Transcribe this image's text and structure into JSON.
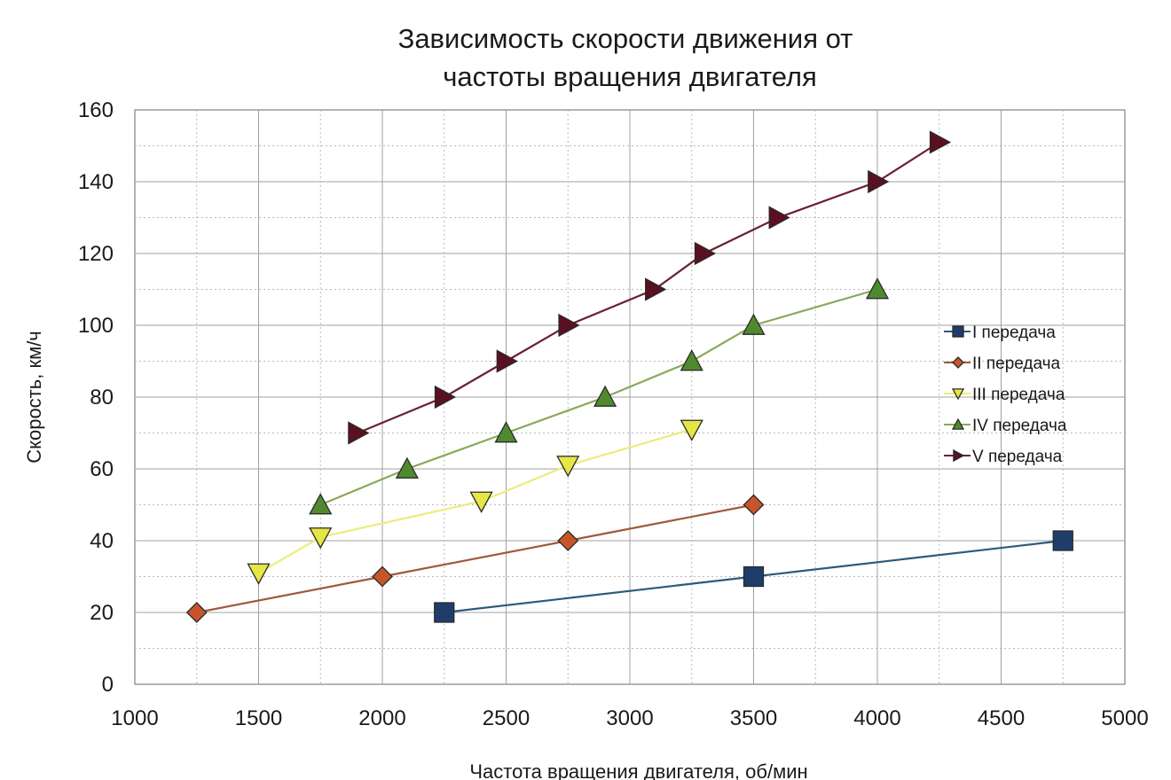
{
  "chart_data": {
    "type": "line",
    "title_line1": "Зависимость скорости движения  от",
    "title_line2": "частоты вращения двигателя",
    "xlabel": "Частота вращения двигателя, об/мин",
    "ylabel": "Скорость, км/ч",
    "xlim": [
      1000,
      5000
    ],
    "ylim": [
      0,
      160
    ],
    "x_ticks": [
      "1000",
      "1500",
      "2000",
      "2500",
      "3000",
      "3500",
      "4000",
      "4500",
      "5000"
    ],
    "y_ticks": [
      "0",
      "20",
      "40",
      "60",
      "80",
      "100",
      "120",
      "140",
      "160"
    ],
    "grid": true,
    "legend_position": "right",
    "series": [
      {
        "name": "I передача",
        "color": "#1f3d6b",
        "line_color": "#2c5a7a",
        "marker": "square",
        "x": [
          2250,
          3500,
          4750
        ],
        "y": [
          20,
          30,
          40
        ]
      },
      {
        "name": "II передача",
        "color": "#c8552a",
        "line_color": "#9c5a3a",
        "marker": "diamond",
        "x": [
          1250,
          2000,
          2750,
          3500
        ],
        "y": [
          20,
          30,
          40,
          50
        ]
      },
      {
        "name": "III передача",
        "color": "#e6e645",
        "line_color": "#ecec7a",
        "marker": "triangle-down",
        "x": [
          1500,
          1750,
          2400,
          2750,
          3250
        ],
        "y": [
          31,
          41,
          51,
          61,
          71
        ]
      },
      {
        "name": "IV передача",
        "color": "#4f8a2f",
        "line_color": "#8aa85a",
        "marker": "triangle-up",
        "x": [
          1750,
          2100,
          2500,
          2900,
          3250,
          3500,
          4000
        ],
        "y": [
          50,
          60,
          70,
          80,
          90,
          100,
          110
        ]
      },
      {
        "name": "V передача",
        "color": "#5a1020",
        "line_color": "#6a2030",
        "marker": "triangle-right",
        "x": [
          1900,
          2250,
          2500,
          2750,
          3100,
          3300,
          3600,
          4000,
          4250
        ],
        "y": [
          70,
          80,
          90,
          100,
          110,
          120,
          130,
          140,
          151
        ]
      }
    ]
  }
}
